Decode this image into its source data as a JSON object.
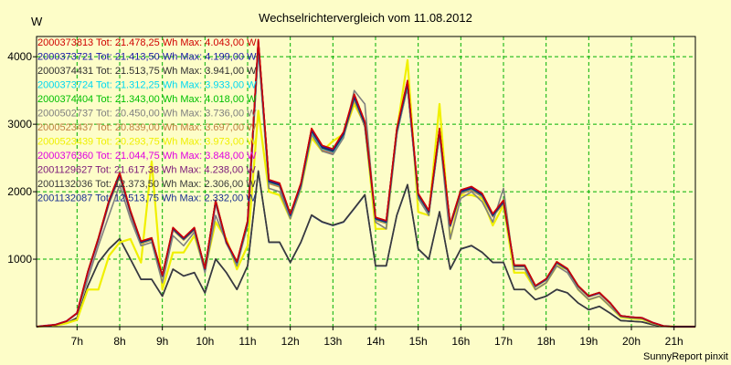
{
  "chart_data": {
    "type": "line",
    "title": "Wechselrichtervergleich vom 11.08.2012",
    "ylabel": "W",
    "footer": "SunnyReport pinxit",
    "ylim": [
      0,
      4300
    ],
    "xlim": [
      6.05,
      21.5
    ],
    "yticks": [
      1000,
      2000,
      3000,
      4000
    ],
    "xticks": [
      {
        "label": "7h",
        "value": 7
      },
      {
        "label": "8h",
        "value": 8
      },
      {
        "label": "9h",
        "value": 9
      },
      {
        "label": "10h",
        "value": 10
      },
      {
        "label": "11h",
        "value": 11
      },
      {
        "label": "12h",
        "value": 12
      },
      {
        "label": "13h",
        "value": 13
      },
      {
        "label": "14h",
        "value": 14
      },
      {
        "label": "15h",
        "value": 15
      },
      {
        "label": "16h",
        "value": 16
      },
      {
        "label": "17h",
        "value": 17
      },
      {
        "label": "18h",
        "value": 18
      },
      {
        "label": "19h",
        "value": 19
      },
      {
        "label": "20h",
        "value": 20
      },
      {
        "label": "21h",
        "value": 21
      }
    ],
    "series": [
      {
        "name": "2000373813",
        "legend": "2000373813 Tot: 21.478,25 Wh Max: 4.043,00 W",
        "color": "#d00000",
        "variant": "full",
        "offset": 40
      },
      {
        "name": "2000373721",
        "legend": "2000373721 Tot: 21.413,50 Wh Max: 4.199,00 W",
        "color": "#1818a8",
        "variant": "full",
        "offset": 20
      },
      {
        "name": "2000374431",
        "legend": "2000374431 Tot: 21.513,75 Wh Max: 3.941,00 W",
        "color": "#303030",
        "variant": "full",
        "offset": 0
      },
      {
        "name": "2000373724",
        "legend": "2000373724 Tot: 21.312,25 Wh Max: 3.933,00 W",
        "color": "#00d8f0",
        "variant": "full",
        "offset": -10
      },
      {
        "name": "2000374404",
        "legend": "2000374404 Tot: 21.343,00 Wh Max: 4.018,00 W",
        "color": "#00c000",
        "variant": "full",
        "offset": 25
      },
      {
        "name": "2000502737",
        "legend": "2000502737 Tot: 20.450,00 Wh Max: 3.736,00 W",
        "color": "#808080",
        "variant": "gray",
        "offset": 0
      },
      {
        "name": "2000523437",
        "legend": "2000523437 Tot: 20.839,00 Wh Max: 3.697,00 W",
        "color": "#c08040",
        "variant": "full",
        "offset": -40
      },
      {
        "name": "2000523439",
        "legend": "2000523439 Tot: 20.293,75 Wh Max: 3.973,00 W",
        "color": "#f0f000",
        "variant": "yellow",
        "offset": 0
      },
      {
        "name": "2000376360",
        "legend": "2000376360 Tot: 21.044,75 Wh Max: 3.848,00 W",
        "color": "#e000e0",
        "variant": "full",
        "offset": -20
      },
      {
        "name": "2001129627",
        "legend": "2001129627 Tot: 21.617,38 Wh Max: 4.238,00 W",
        "color": "#7a1878",
        "variant": "full",
        "offset": 35
      },
      {
        "name": "2001132036",
        "legend": "2001132036 Tot: 12.373,50 Wh Max: 2.306,00 W",
        "color": "#3a3a3a",
        "variant": "half",
        "offset": 10
      },
      {
        "name": "2001132087",
        "legend": "2001132087 Tot: 12.513,75 Wh Max: 2.332,00 W",
        "color": "#183090",
        "variant": "half",
        "offset": 0
      }
    ],
    "profiles": {
      "x": [
        6.05,
        6.5,
        6.75,
        7.0,
        7.25,
        7.5,
        7.75,
        8.0,
        8.25,
        8.5,
        8.75,
        9.0,
        9.25,
        9.5,
        9.75,
        10.0,
        10.25,
        10.5,
        10.75,
        11.0,
        11.25,
        11.5,
        11.75,
        12.0,
        12.25,
        12.5,
        12.75,
        13.0,
        13.25,
        13.5,
        13.75,
        14.0,
        14.25,
        14.5,
        14.75,
        15.0,
        15.25,
        15.5,
        15.75,
        16.0,
        16.25,
        16.5,
        16.75,
        17.0,
        17.25,
        17.5,
        17.75,
        18.0,
        18.25,
        18.5,
        18.75,
        19.0,
        19.25,
        19.5,
        19.75,
        20.0,
        20.25,
        20.5,
        20.75,
        21.0,
        21.5
      ],
      "full": [
        0,
        30,
        80,
        200,
        800,
        1300,
        1850,
        2250,
        1700,
        1250,
        1300,
        750,
        1450,
        1300,
        1450,
        850,
        1850,
        1250,
        950,
        1550,
        4200,
        2150,
        2100,
        1650,
        2100,
        2900,
        2650,
        2600,
        2850,
        3400,
        3000,
        1600,
        1550,
        2900,
        3600,
        1950,
        1700,
        2900,
        1500,
        2000,
        2050,
        1950,
        1650,
        1850,
        900,
        900,
        600,
        700,
        950,
        850,
        600,
        450,
        500,
        350,
        160,
        140,
        130,
        60,
        10,
        0,
        0
      ],
      "gray": [
        0,
        30,
        80,
        200,
        700,
        1200,
        1650,
        2100,
        1600,
        1200,
        1250,
        650,
        1350,
        1200,
        1400,
        800,
        1650,
        1250,
        900,
        1500,
        4100,
        2050,
        2000,
        1600,
        2050,
        2850,
        2600,
        2550,
        2800,
        3500,
        3300,
        1550,
        1450,
        2850,
        3550,
        1900,
        1650,
        2850,
        1300,
        1900,
        2000,
        1850,
        1550,
        2050,
        850,
        850,
        550,
        650,
        900,
        800,
        550,
        400,
        450,
        300,
        150,
        130,
        120,
        50,
        10,
        0,
        0
      ],
      "yellow": [
        0,
        20,
        50,
        100,
        550,
        550,
        1050,
        1250,
        1300,
        950,
        2450,
        550,
        1100,
        1100,
        1350,
        850,
        1550,
        1300,
        850,
        1200,
        3200,
        2000,
        1950,
        1600,
        2050,
        2800,
        2600,
        2750,
        2850,
        3300,
        3000,
        1450,
        1450,
        2900,
        3950,
        1700,
        1650,
        3300,
        1300,
        1950,
        1950,
        1900,
        1500,
        1800,
        800,
        800,
        550,
        650,
        900,
        850,
        550,
        400,
        450,
        300,
        140,
        120,
        110,
        50,
        10,
        0,
        0
      ],
      "half": [
        0,
        20,
        50,
        130,
        600,
        950,
        1150,
        1300,
        1000,
        700,
        700,
        450,
        850,
        750,
        800,
        500,
        1000,
        800,
        550,
        900,
        2300,
        1250,
        1250,
        950,
        1250,
        1650,
        1550,
        1500,
        1550,
        1750,
        1950,
        900,
        900,
        1650,
        2100,
        1150,
        1000,
        1700,
        850,
        1150,
        1200,
        1100,
        950,
        950,
        550,
        550,
        400,
        450,
        550,
        500,
        350,
        250,
        300,
        200,
        90,
        80,
        70,
        30,
        5,
        0,
        0
      ]
    }
  }
}
